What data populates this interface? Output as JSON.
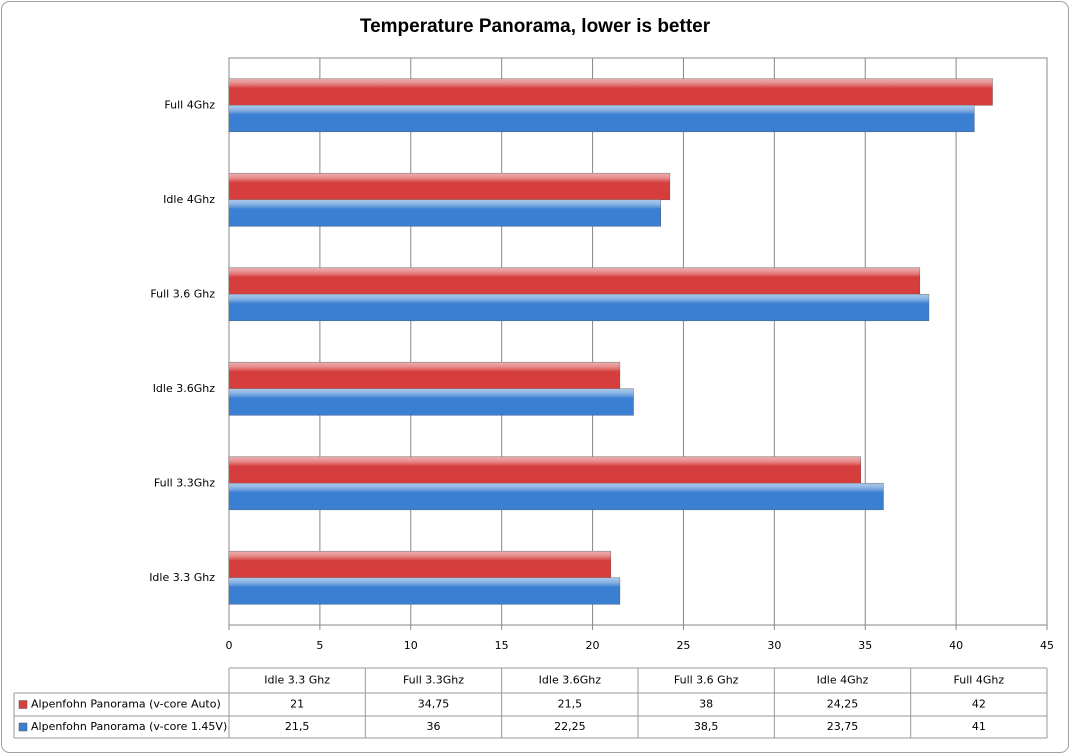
{
  "chart_data": {
    "type": "hbar",
    "title": "Temperature Panorama, lower is better",
    "categories": [
      "Idle 3.3 Ghz",
      "Full 3.3Ghz",
      "Idle 3.6Ghz",
      "Full 3.6 Ghz",
      "Idle 4Ghz",
      "Full 4Ghz"
    ],
    "series": [
      {
        "name": "Alpenfohn Panorama (v-core Auto)",
        "color": "#d63e3e",
        "values": [
          21,
          34.75,
          21.5,
          38,
          24.25,
          42
        ],
        "value_labels": [
          "21",
          "34,75",
          "21,5",
          "38",
          "24,25",
          "42"
        ]
      },
      {
        "name": "Alpenfohn Panorama (v-core 1.45V)",
        "color": "#3a7fd1",
        "values": [
          21.5,
          36,
          22.25,
          38.5,
          23.75,
          41
        ],
        "value_labels": [
          "21,5",
          "36",
          "22,25",
          "38,5",
          "23,75",
          "41"
        ]
      }
    ],
    "xlim": [
      0,
      45
    ],
    "xticks": [
      0,
      5,
      10,
      15,
      20,
      25,
      30,
      35,
      40,
      45
    ],
    "grid": true
  }
}
